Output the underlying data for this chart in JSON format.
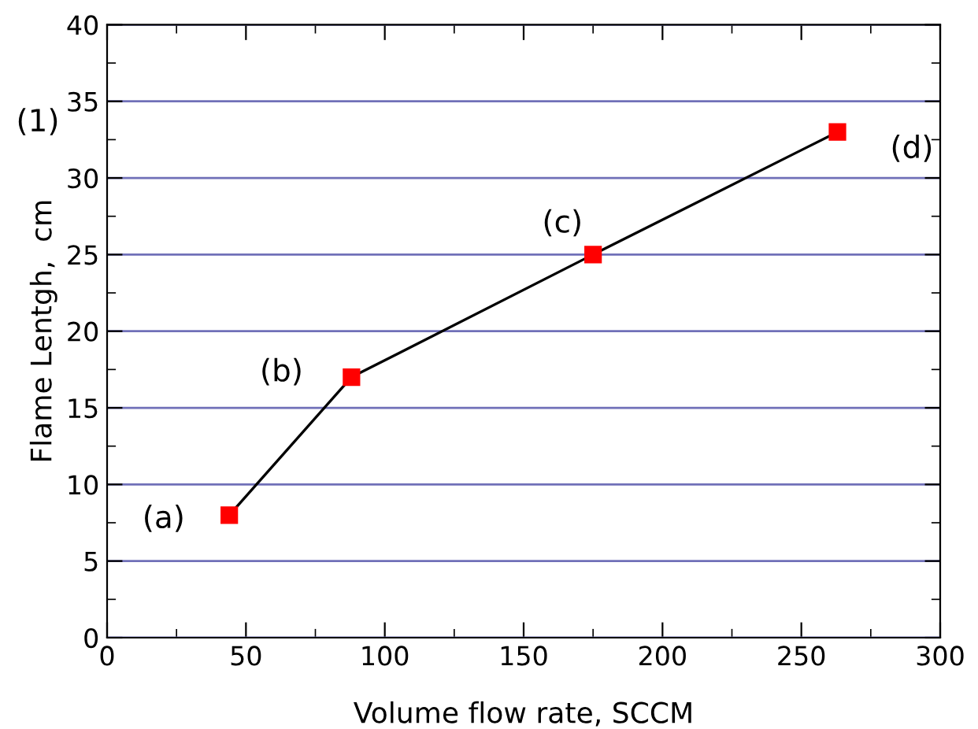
{
  "chart_data": {
    "type": "line",
    "xlabel": "Volume flow rate, SCCM",
    "ylabel": "Flame Lentgh,  cm",
    "x": [
      44,
      88,
      175,
      263
    ],
    "series": [
      {
        "color": "#ff0000",
        "values": [
          8,
          17,
          25,
          33
        ]
      }
    ],
    "xlim": [
      0,
      300
    ],
    "xticks": [
      0,
      50,
      100,
      150,
      200,
      250,
      300
    ],
    "ylim": [
      0,
      40
    ],
    "yticks": [
      0,
      5,
      10,
      15,
      20,
      25,
      30,
      35,
      40
    ],
    "grid": "y",
    "marker": "square",
    "line_style": "solid",
    "annotations": [
      {
        "text": "(a)",
        "x": 44,
        "y": 8
      },
      {
        "text": "(b)",
        "x": 88,
        "y": 17
      },
      {
        "text": "(c)",
        "x": 175,
        "y": 25
      },
      {
        "text": "(d)",
        "x": 263,
        "y": 33
      },
      "(1)"
    ]
  }
}
